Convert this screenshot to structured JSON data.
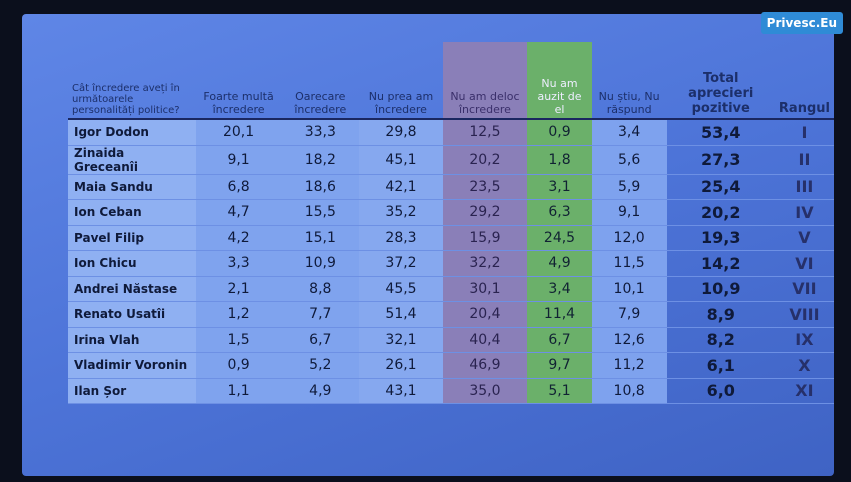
{
  "badge": "Privesc.Eu",
  "table": {
    "header": [
      "Cât încredere aveți în următoarele personalități politice?",
      "Foarte multă încredere",
      "Oarecare încredere",
      "Nu prea am încredere",
      "Nu am deloc încredere",
      "Nu am auzit de el",
      "Nu știu, Nu răspund",
      "Total aprecieri pozitive",
      "Rangul"
    ],
    "rows": [
      [
        "Igor Dodon",
        "20,1",
        "33,3",
        "29,8",
        "12,5",
        "0,9",
        "3,4",
        "53,4",
        "I"
      ],
      [
        "Zinaida Greceanîi",
        "9,1",
        "18,2",
        "45,1",
        "20,2",
        "1,8",
        "5,6",
        "27,3",
        "II"
      ],
      [
        "Maia Sandu",
        "6,8",
        "18,6",
        "42,1",
        "23,5",
        "3,1",
        "5,9",
        "25,4",
        "III"
      ],
      [
        "Ion Ceban",
        "4,7",
        "15,5",
        "35,2",
        "29,2",
        "6,3",
        "9,1",
        "20,2",
        "IV"
      ],
      [
        "Pavel Filip",
        "4,2",
        "15,1",
        "28,3",
        "15,9",
        "24,5",
        "12,0",
        "19,3",
        "V"
      ],
      [
        "Ion Chicu",
        "3,3",
        "10,9",
        "37,2",
        "32,2",
        "4,9",
        "11,5",
        "14,2",
        "VI"
      ],
      [
        "Andrei Năstase",
        "2,1",
        "8,8",
        "45,5",
        "30,1",
        "3,4",
        "10,1",
        "10,9",
        "VII"
      ],
      [
        "Renato Usatîi",
        "1,2",
        "7,7",
        "51,4",
        "20,4",
        "11,4",
        "7,9",
        "8,9",
        "VIII"
      ],
      [
        "Irina Vlah",
        "1,5",
        "6,7",
        "32,1",
        "40,4",
        "6,7",
        "12,6",
        "8,2",
        "IX"
      ],
      [
        "Vladimir Voronin",
        "0,9",
        "5,2",
        "26,1",
        "46,9",
        "9,7",
        "11,2",
        "6,1",
        "X"
      ],
      [
        "Ilan Șor",
        "1,1",
        "4,9",
        "43,1",
        "35,0",
        "5,1",
        "10,8",
        "6,0",
        "XI"
      ]
    ]
  }
}
